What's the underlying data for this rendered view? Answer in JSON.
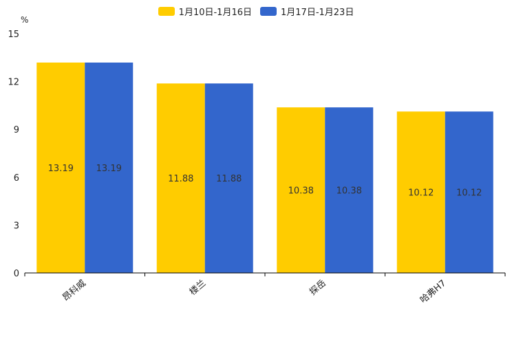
{
  "chart_data": {
    "type": "bar",
    "unit_label": "%",
    "categories": [
      "昂科威",
      "楼兰",
      "探岳",
      "哈弗H7"
    ],
    "series": [
      {
        "name": "1月10日-1月16日",
        "color": "#FFCC00",
        "values": [
          13.19,
          11.88,
          10.38,
          10.12
        ]
      },
      {
        "name": "1月17日-1月23日",
        "color": "#3366CC",
        "values": [
          13.19,
          11.88,
          10.38,
          10.12
        ]
      }
    ],
    "yticks": [
      0,
      3,
      6,
      9,
      12,
      15
    ],
    "ylim": [
      0,
      15
    ],
    "title": "",
    "xlabel": "",
    "ylabel": "%"
  }
}
